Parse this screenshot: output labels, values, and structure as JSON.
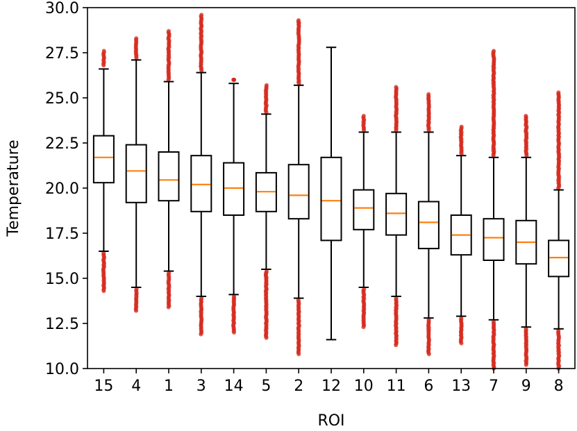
{
  "chart_data": {
    "type": "boxplot",
    "title": "",
    "xlabel": "ROI",
    "ylabel": "Temperature",
    "ylim": [
      10.0,
      30.0
    ],
    "yticks": [
      "10.0",
      "12.5",
      "15.0",
      "17.5",
      "20.0",
      "22.5",
      "25.0",
      "27.5",
      "30.0"
    ],
    "grid": false,
    "colors": {
      "box": "#000000",
      "median": "#ff7f0e",
      "outlier": "#d62a1e"
    },
    "categories": [
      "15",
      "4",
      "1",
      "3",
      "14",
      "5",
      "2",
      "12",
      "10",
      "11",
      "6",
      "13",
      "7",
      "9",
      "8"
    ],
    "boxes": [
      {
        "label": "15",
        "whislo": 16.5,
        "q1": 20.3,
        "med": 21.7,
        "q3": 22.9,
        "whishi": 26.6,
        "outliers_low": [
          14.3,
          16.4
        ],
        "outliers_high": [
          26.8,
          27.6
        ]
      },
      {
        "label": "4",
        "whislo": 14.5,
        "q1": 19.2,
        "med": 20.95,
        "q3": 22.4,
        "whishi": 27.1,
        "outliers_low": [
          13.2,
          14.4
        ],
        "outliers_high": [
          27.2,
          28.3
        ]
      },
      {
        "label": "1",
        "whislo": 15.4,
        "q1": 19.3,
        "med": 20.45,
        "q3": 22.0,
        "whishi": 25.9,
        "outliers_low": [
          13.4,
          15.3
        ],
        "outliers_high": [
          26.0,
          28.7
        ]
      },
      {
        "label": "3",
        "whislo": 14.0,
        "q1": 18.7,
        "med": 20.2,
        "q3": 21.8,
        "whishi": 26.4,
        "outliers_low": [
          11.9,
          13.9
        ],
        "outliers_high": [
          26.5,
          29.6
        ]
      },
      {
        "label": "14",
        "whislo": 14.1,
        "q1": 18.5,
        "med": 20.0,
        "q3": 21.4,
        "whishi": 25.8,
        "outliers_low": [
          12.0,
          14.0
        ],
        "outliers_high": [
          26.0,
          26.0
        ]
      },
      {
        "label": "5",
        "whislo": 15.5,
        "q1": 18.7,
        "med": 19.8,
        "q3": 20.85,
        "whishi": 24.1,
        "outliers_low": [
          11.7,
          15.4
        ],
        "outliers_high": [
          24.2,
          25.7
        ]
      },
      {
        "label": "2",
        "whislo": 13.9,
        "q1": 18.3,
        "med": 19.6,
        "q3": 21.3,
        "whishi": 25.7,
        "outliers_low": [
          10.8,
          13.8
        ],
        "outliers_high": [
          25.8,
          29.3
        ]
      },
      {
        "label": "12",
        "whislo": 11.6,
        "q1": 17.1,
        "med": 19.3,
        "q3": 21.7,
        "whishi": 27.8,
        "outliers_low": [],
        "outliers_high": []
      },
      {
        "label": "10",
        "whislo": 14.5,
        "q1": 17.7,
        "med": 18.9,
        "q3": 19.9,
        "whishi": 23.1,
        "outliers_low": [
          12.3,
          14.4
        ],
        "outliers_high": [
          23.2,
          24.0
        ]
      },
      {
        "label": "11",
        "whislo": 14.0,
        "q1": 17.4,
        "med": 18.6,
        "q3": 19.7,
        "whishi": 23.1,
        "outliers_low": [
          11.3,
          13.9
        ],
        "outliers_high": [
          23.2,
          25.6
        ]
      },
      {
        "label": "6",
        "whislo": 12.8,
        "q1": 16.65,
        "med": 18.1,
        "q3": 19.25,
        "whishi": 23.1,
        "outliers_low": [
          10.8,
          12.7
        ],
        "outliers_high": [
          23.2,
          25.2
        ]
      },
      {
        "label": "13",
        "whislo": 12.9,
        "q1": 16.3,
        "med": 17.4,
        "q3": 18.5,
        "whishi": 21.8,
        "outliers_low": [
          11.4,
          12.8
        ],
        "outliers_high": [
          21.9,
          23.4
        ]
      },
      {
        "label": "7",
        "whislo": 12.7,
        "q1": 16.0,
        "med": 17.25,
        "q3": 18.3,
        "whishi": 21.7,
        "outliers_low": [
          10.0,
          12.6
        ],
        "outliers_high": [
          21.8,
          27.6
        ]
      },
      {
        "label": "9",
        "whislo": 12.3,
        "q1": 15.8,
        "med": 17.0,
        "q3": 18.2,
        "whishi": 21.7,
        "outliers_low": [
          10.2,
          12.2
        ],
        "outliers_high": [
          21.8,
          24.0
        ]
      },
      {
        "label": "8",
        "whislo": 12.2,
        "q1": 15.1,
        "med": 16.15,
        "q3": 17.1,
        "whishi": 19.9,
        "outliers_low": [
          10.0,
          12.1
        ],
        "outliers_high": [
          20.0,
          25.3
        ]
      }
    ]
  }
}
